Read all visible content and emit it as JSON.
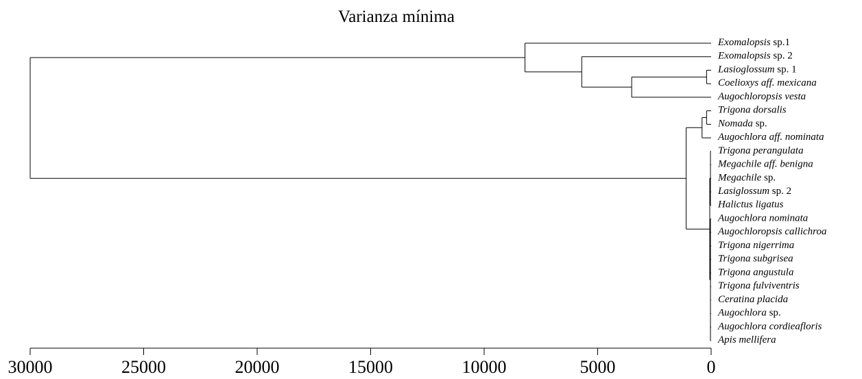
{
  "chart_data": {
    "type": "dendrogram",
    "title": "Varianza mínima",
    "leaves": [
      [
        "Exomalopsis",
        "sp.1"
      ],
      [
        "Exomalopsis",
        "sp. 2"
      ],
      [
        "Lasioglossum",
        "sp. 1"
      ],
      [
        "Coelioxys aff. mexicana"
      ],
      [
        "Augochloropsis vesta"
      ],
      [
        "Trigona  dorsalis"
      ],
      [
        "Nomada",
        "sp."
      ],
      [
        "Augochlora aff. nominata"
      ],
      [
        "Trigona perangulata"
      ],
      [
        "Megachile aff. benigna"
      ],
      [
        "Megachile",
        "sp."
      ],
      [
        "Lasiglossum",
        "sp. 2"
      ],
      [
        "Halictus ligatus"
      ],
      [
        "Augochlora nominata"
      ],
      [
        "Augochloropsis callichroa"
      ],
      [
        "Trigona nigerrima"
      ],
      [
        "Trigona subgrisea"
      ],
      [
        "Trigona angustula"
      ],
      [
        "Trigona fulviventris"
      ],
      [
        "Ceratina placida"
      ],
      [
        "Augochlora",
        "sp."
      ],
      [
        "Augochlora cordieafloris"
      ],
      [
        "Apis mellifera"
      ]
    ],
    "tree": {
      "height": 30000,
      "children": [
        {
          "height": 8200,
          "children": [
            0,
            {
              "height": 5700,
              "children": [
                1,
                {
                  "height": 3500,
                  "children": [
                    {
                      "height": 200,
                      "children": [
                        2,
                        3
                      ]
                    },
                    4
                  ]
                }
              ]
            }
          ]
        },
        {
          "height": 1100,
          "children": [
            {
              "height": 400,
              "children": [
                {
                  "height": 200,
                  "children": [
                    5,
                    6
                  ]
                },
                7
              ]
            },
            {
              "height": 60,
              "children": [
                {
                  "height": 30,
                  "children": [
                    8,
                    9,
                    10,
                    11,
                    12
                  ]
                },
                {
                  "height": 30,
                  "children": [
                    13,
                    14,
                    15,
                    16,
                    17,
                    18,
                    19,
                    20,
                    21,
                    22
                  ]
                }
              ]
            }
          ]
        }
      ]
    },
    "xlim": [
      30000,
      0
    ],
    "xticks": [
      30000,
      25000,
      20000,
      15000,
      10000,
      5000,
      0
    ],
    "color": "#000000"
  }
}
